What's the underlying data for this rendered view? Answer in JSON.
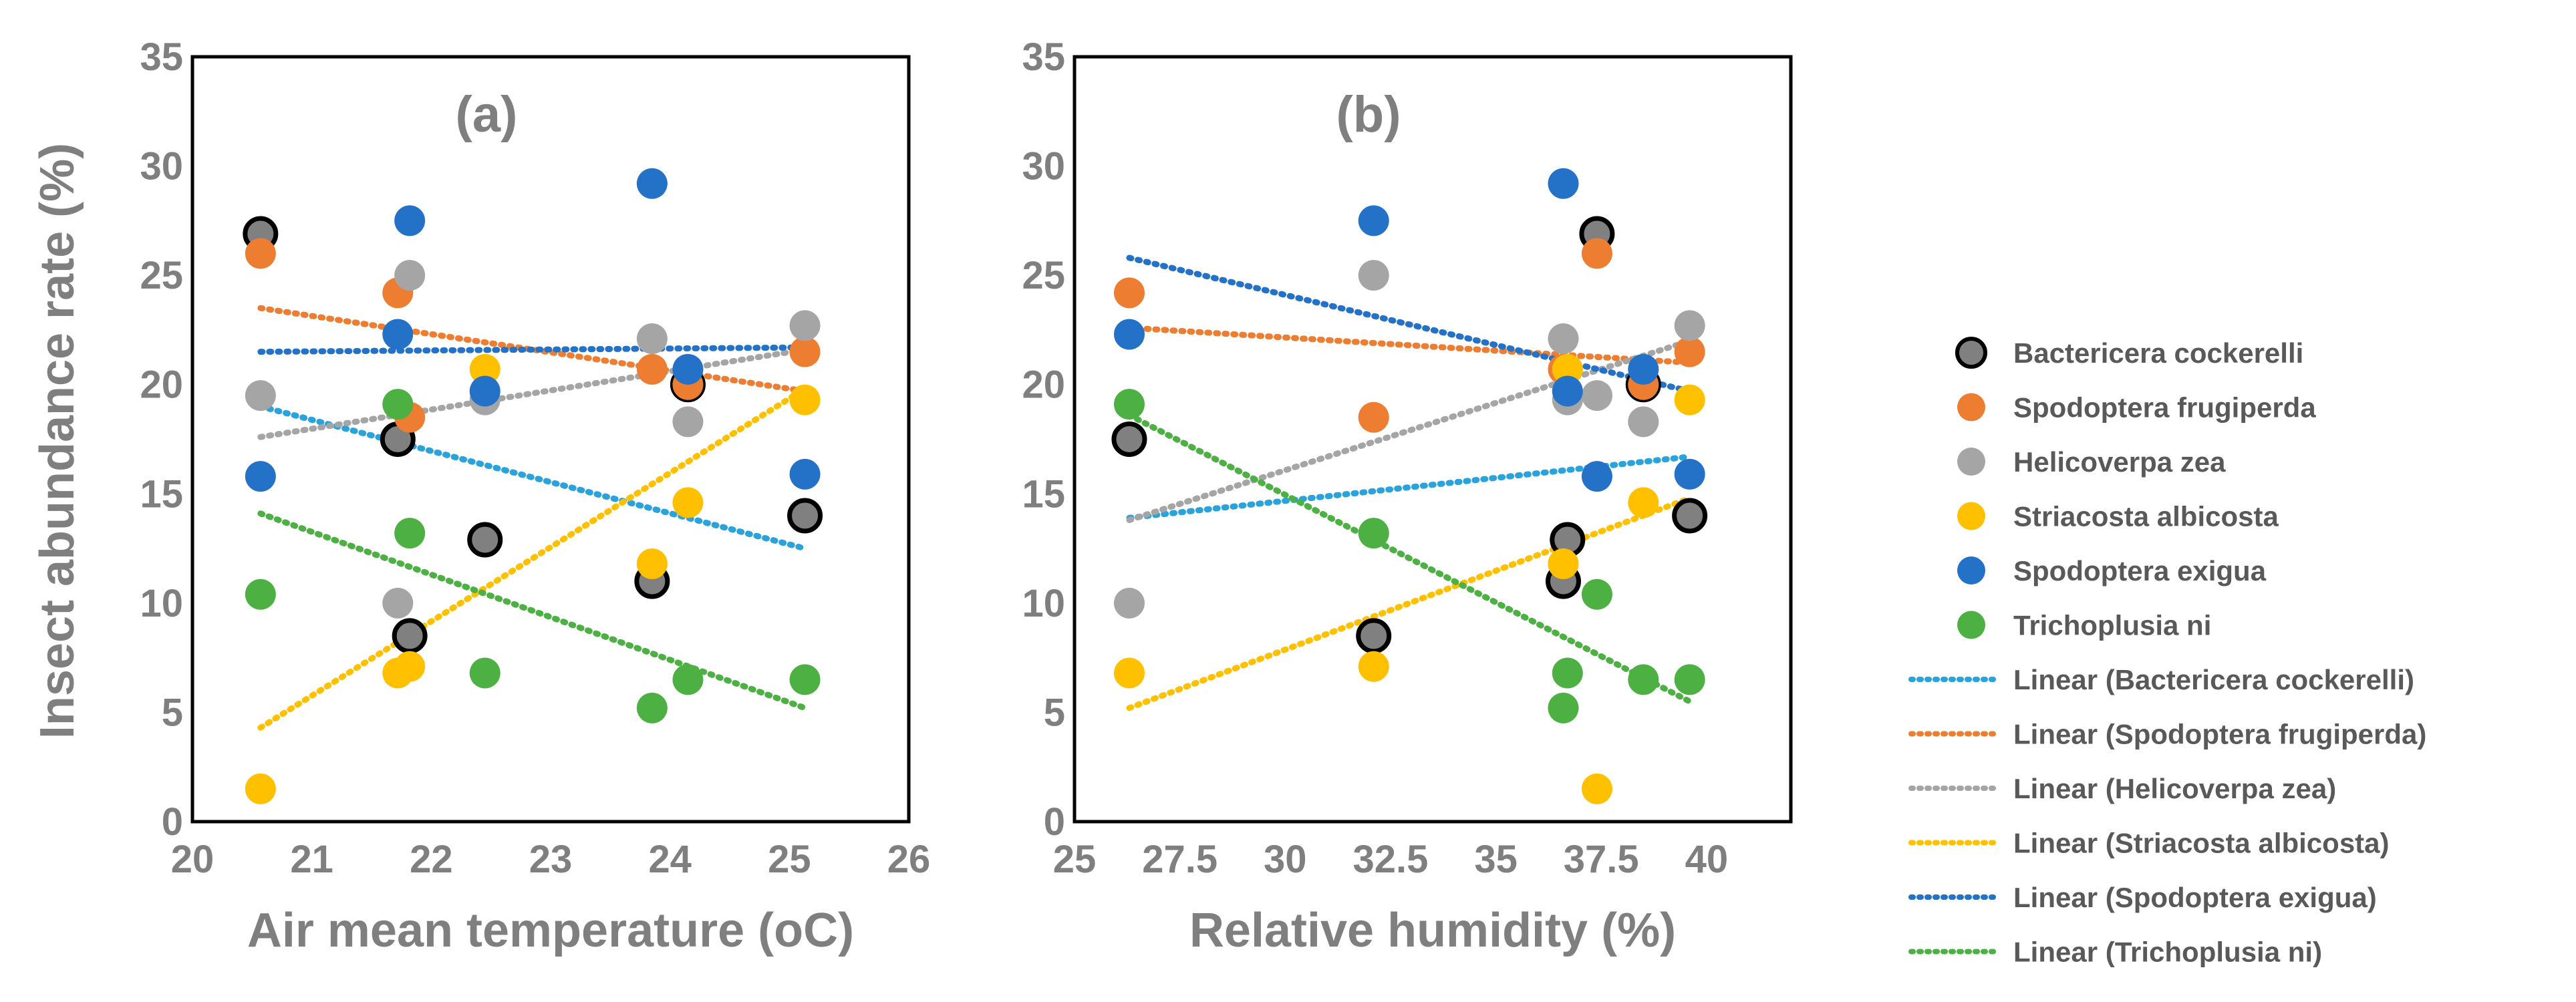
{
  "chart_data": [
    {
      "type": "scatter",
      "panel_label": "(a)",
      "title": "",
      "xlabel": "Air mean temperature (oC)",
      "ylabel": "Insect abundance rate (%)",
      "xlim": [
        20,
        26
      ],
      "ylim": [
        0,
        35
      ],
      "xticks": [
        "20",
        "21",
        "22",
        "23",
        "24",
        "25",
        "26"
      ],
      "yticks": [
        "0",
        "5",
        "10",
        "15",
        "20",
        "25",
        "30",
        "35"
      ],
      "grid": false,
      "series": [
        {
          "name": "Bactericera cockerelli",
          "color": "#000000",
          "fill": "#808080",
          "x": [
            20.57,
            21.72,
            21.82,
            22.45,
            23.85,
            24.15,
            25.13
          ],
          "y": [
            26.9,
            17.5,
            8.5,
            12.9,
            11.0,
            20.0,
            14.0
          ],
          "trend": [
            19.0,
            12.5
          ]
        },
        {
          "name": "Spodoptera frugiperda",
          "color": "#ED7D31",
          "x": [
            20.57,
            21.72,
            21.82,
            23.85,
            24.15,
            25.13
          ],
          "y": [
            26.0,
            24.2,
            18.5,
            20.7,
            20.0,
            21.5
          ],
          "trend": [
            23.5,
            19.7
          ]
        },
        {
          "name": "Helicoverpa zea",
          "color": "#A5A5A5",
          "x": [
            20.57,
            21.72,
            21.82,
            22.45,
            23.85,
            24.15,
            25.13
          ],
          "y": [
            19.5,
            10.0,
            25.0,
            19.3,
            22.1,
            18.3,
            22.7
          ],
          "trend": [
            17.6,
            21.6
          ]
        },
        {
          "name": "Striacosta albicosta",
          "color": "#FFC000",
          "x": [
            20.57,
            21.72,
            21.82,
            22.45,
            23.85,
            24.15,
            25.13
          ],
          "y": [
            1.5,
            6.8,
            7.1,
            20.7,
            11.8,
            14.6,
            19.3
          ],
          "trend": [
            4.3,
            19.8
          ]
        },
        {
          "name": "Spodoptera exigua",
          "color": "#2472C8",
          "x": [
            20.57,
            21.72,
            21.82,
            22.45,
            23.85,
            24.15,
            25.13
          ],
          "y": [
            15.8,
            22.3,
            27.5,
            19.7,
            29.2,
            20.7,
            15.9
          ],
          "trend": [
            21.5,
            21.7
          ]
        },
        {
          "name": "Trichoplusia ni",
          "color": "#4CB043",
          "x": [
            20.57,
            21.72,
            21.82,
            22.45,
            23.85,
            24.15,
            25.13
          ],
          "y": [
            10.4,
            19.1,
            13.2,
            6.8,
            5.2,
            6.5,
            6.5
          ],
          "trend": [
            14.1,
            5.2
          ]
        }
      ]
    },
    {
      "type": "scatter",
      "panel_label": "(b)",
      "title": "",
      "xlabel": "Relative humidity (%)",
      "ylabel": "",
      "xlim": [
        25,
        42
      ],
      "ylim": [
        0,
        35
      ],
      "xticks": [
        "25",
        "27.5",
        "30",
        "32.5",
        "35",
        "37.5",
        "40"
      ],
      "yticks": [
        "0",
        "5",
        "10",
        "15",
        "20",
        "25",
        "30",
        "35"
      ],
      "grid": false,
      "series": [
        {
          "name": "Bactericera cockerelli",
          "color": "#000000",
          "fill": "#808080",
          "x": [
            26.3,
            32.1,
            36.6,
            36.7,
            37.4,
            38.5,
            39.6
          ],
          "y": [
            17.5,
            8.5,
            11.0,
            12.9,
            26.9,
            20.0,
            14.0
          ],
          "trend": [
            13.9,
            16.7
          ]
        },
        {
          "name": "Spodoptera frugiperda",
          "color": "#ED7D31",
          "x": [
            26.3,
            32.1,
            36.6,
            37.4,
            38.5,
            39.6
          ],
          "y": [
            24.2,
            18.5,
            20.7,
            26.0,
            20.0,
            21.5
          ],
          "trend": [
            22.6,
            21.0
          ]
        },
        {
          "name": "Helicoverpa zea",
          "color": "#A5A5A5",
          "x": [
            26.3,
            32.1,
            36.6,
            36.7,
            37.4,
            38.5,
            39.6
          ],
          "y": [
            10.0,
            25.0,
            22.1,
            19.3,
            19.5,
            18.3,
            22.7
          ],
          "trend": [
            13.8,
            22.0
          ]
        },
        {
          "name": "Striacosta albicosta",
          "color": "#FFC000",
          "x": [
            26.3,
            32.1,
            36.6,
            36.7,
            37.4,
            38.5,
            39.6
          ],
          "y": [
            6.8,
            7.1,
            11.8,
            20.7,
            1.5,
            14.6,
            19.3
          ],
          "trend": [
            5.2,
            14.8
          ]
        },
        {
          "name": "Spodoptera exigua",
          "color": "#2472C8",
          "x": [
            26.3,
            32.1,
            36.6,
            36.7,
            37.4,
            38.5,
            39.6
          ],
          "y": [
            22.3,
            27.5,
            29.2,
            19.7,
            15.8,
            20.7,
            15.9
          ],
          "trend": [
            25.8,
            19.7
          ]
        },
        {
          "name": "Trichoplusia ni",
          "color": "#4CB043",
          "x": [
            26.3,
            32.1,
            36.6,
            36.7,
            37.4,
            38.5,
            39.6
          ],
          "y": [
            19.1,
            13.2,
            5.2,
            6.8,
            10.4,
            6.5,
            6.5
          ],
          "trend": [
            18.6,
            5.5
          ]
        }
      ]
    }
  ],
  "legend": {
    "position": "right",
    "markers": [
      {
        "name": "Bactericera cockerelli",
        "color": "#808080",
        "stroke": "#000000"
      },
      {
        "name": "Spodoptera frugiperda",
        "color": "#ED7D31"
      },
      {
        "name": "Helicoverpa zea",
        "color": "#A5A5A5"
      },
      {
        "name": "Striacosta albicosta",
        "color": "#FFC000"
      },
      {
        "name": "Spodoptera exigua",
        "color": "#2472C8"
      },
      {
        "name": "Trichoplusia ni",
        "color": "#4CB043"
      }
    ],
    "lines": [
      {
        "name": "Linear (Bactericera cockerelli)",
        "color": "#2AA2DC"
      },
      {
        "name": "Linear (Spodoptera frugiperda)",
        "color": "#ED7D31"
      },
      {
        "name": "Linear (Helicoverpa zea)",
        "color": "#A5A5A5"
      },
      {
        "name": "Linear (Striacosta albicosta)",
        "color": "#FFC000"
      },
      {
        "name": "Linear (Spodoptera exigua)",
        "color": "#2472C8"
      },
      {
        "name": "Linear (Trichoplusia ni)",
        "color": "#4CB043"
      }
    ]
  }
}
